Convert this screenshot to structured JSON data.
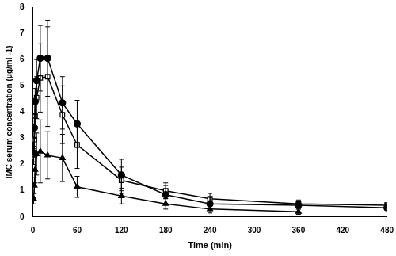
{
  "chart_data": {
    "type": "line",
    "x_label": "Time (min)",
    "y_label": "IMC serum concentration (μg/ml -1)",
    "x": [
      1,
      2,
      3,
      5,
      10,
      20,
      40,
      60,
      120,
      180,
      240,
      360,
      480
    ],
    "xlim": [
      0,
      480
    ],
    "xticks": [
      0,
      60,
      120,
      180,
      240,
      300,
      360,
      420,
      480
    ],
    "ylim": [
      0,
      8
    ],
    "yticks": [
      0,
      1,
      2,
      3,
      4,
      5,
      6,
      7,
      8
    ],
    "grid": false,
    "series": [
      {
        "color": "#000000",
        "marker": "circle",
        "line_style": "solid",
        "values": [
          2.4,
          3.4,
          4.4,
          5.2,
          6.05,
          6.05,
          4.35,
          3.55,
          1.6,
          0.85,
          0.5,
          0.45,
          0.35
        ],
        "errors": [
          0.3,
          0.4,
          0.5,
          0.8,
          1.25,
          1.45,
          1.0,
          0.9,
          0.6,
          0.35,
          0.25,
          0.15,
          0.1
        ]
      },
      {
        "color": "#000000",
        "marker": "square_open",
        "line_style": "solid",
        "values": [
          2.3,
          2.95,
          3.85,
          4.55,
          5.3,
          5.35,
          3.9,
          2.75,
          1.4,
          1.0,
          0.7,
          0.5,
          0.45
        ],
        "errors": [
          0.3,
          0.4,
          0.5,
          0.8,
          1.3,
          1.9,
          1.1,
          0.9,
          0.5,
          0.3,
          0.2,
          0.15,
          0.1
        ]
      },
      {
        "color": "#000000",
        "marker": "triangle",
        "line_style": "solid",
        "values": [
          0.7,
          1.2,
          1.8,
          2.4,
          2.5,
          2.35,
          2.25,
          1.15,
          0.8,
          0.5,
          0.3,
          0.2,
          null
        ],
        "errors": [
          0.2,
          0.3,
          0.5,
          0.8,
          1.2,
          0.9,
          0.9,
          0.4,
          0.3,
          0.2,
          0.15,
          0.1,
          null
        ]
      }
    ]
  }
}
